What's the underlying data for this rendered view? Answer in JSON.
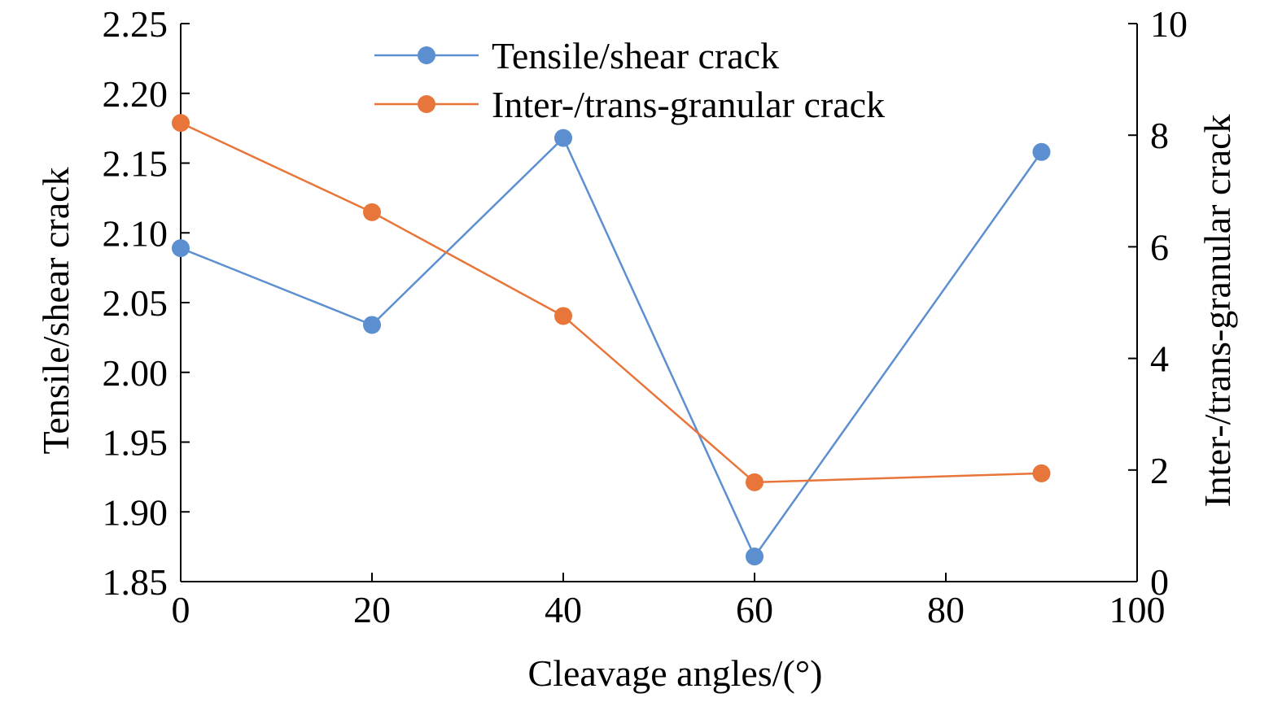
{
  "chart_data": {
    "type": "line",
    "title": "",
    "xlabel": "Cleavage angles/(°)",
    "ylabel_left": "Tensile/shear crack",
    "ylabel_right": "Inter-/trans-granular crack",
    "xlim": [
      0,
      100
    ],
    "ylim_left": [
      1.85,
      2.25
    ],
    "ylim_right": [
      0,
      10
    ],
    "x_ticks": [
      "0",
      "20",
      "40",
      "60",
      "80",
      "100"
    ],
    "y_left_ticks": [
      "1.85",
      "1.90",
      "1.95",
      "2.00",
      "2.05",
      "2.10",
      "2.15",
      "2.20",
      "2.25"
    ],
    "y_right_ticks": [
      "0",
      "2",
      "4",
      "6",
      "8",
      "10"
    ],
    "grid": false,
    "legend_position": "top-center",
    "series": [
      {
        "name": "Tensile/shear crack",
        "axis": "left",
        "color": "#5b8fd0",
        "x": [
          0,
          20,
          40,
          60,
          90
        ],
        "values": [
          2.089,
          2.034,
          2.168,
          1.868,
          2.158
        ]
      },
      {
        "name": "Inter-/trans-granular crack",
        "axis": "right",
        "color": "#e8753a",
        "x": [
          0,
          20,
          40,
          60,
          90
        ],
        "values": [
          8.22,
          6.62,
          4.76,
          1.78,
          1.94
        ]
      }
    ]
  }
}
